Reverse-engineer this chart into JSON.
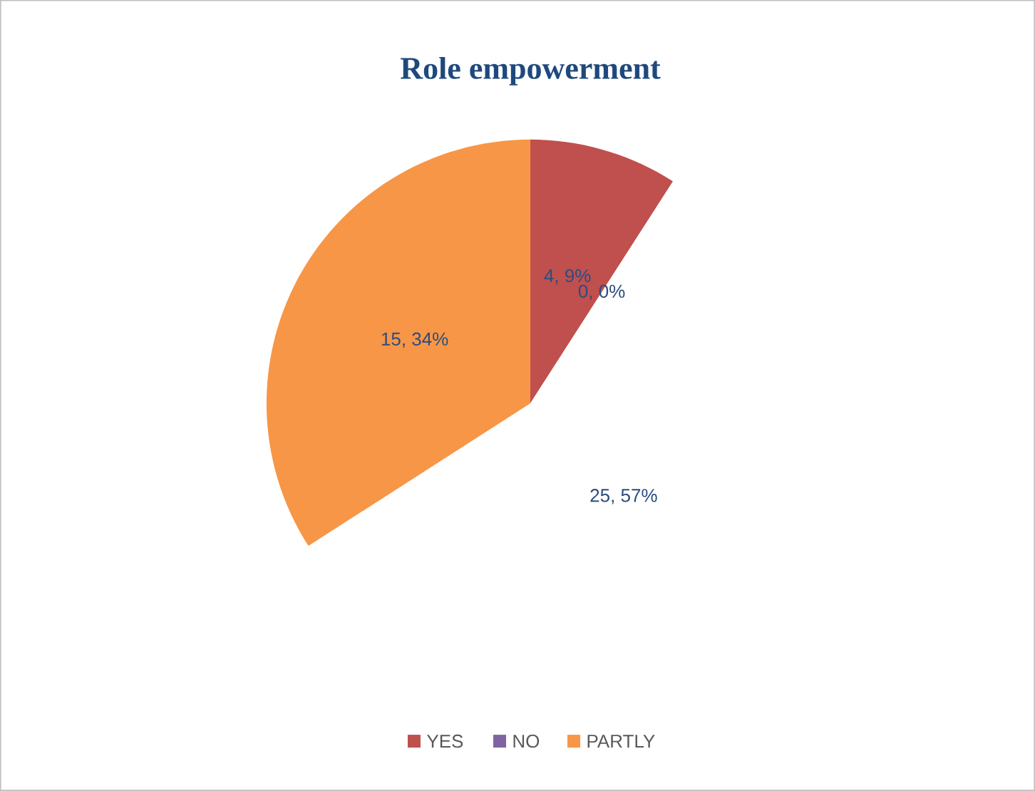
{
  "chart_data": {
    "type": "pie",
    "title": "Role empowerment",
    "categories": [
      "YES",
      "NO",
      null,
      "PARTLY"
    ],
    "values": [
      4,
      0,
      25,
      15
    ],
    "colors": [
      "#c0504d",
      "#8064a2",
      "#ffffff",
      "#f79646"
    ],
    "value_labels": [
      "4, 9%",
      "0, 0%",
      "25, 57%",
      "15, 34%"
    ],
    "legend": "bottom"
  }
}
